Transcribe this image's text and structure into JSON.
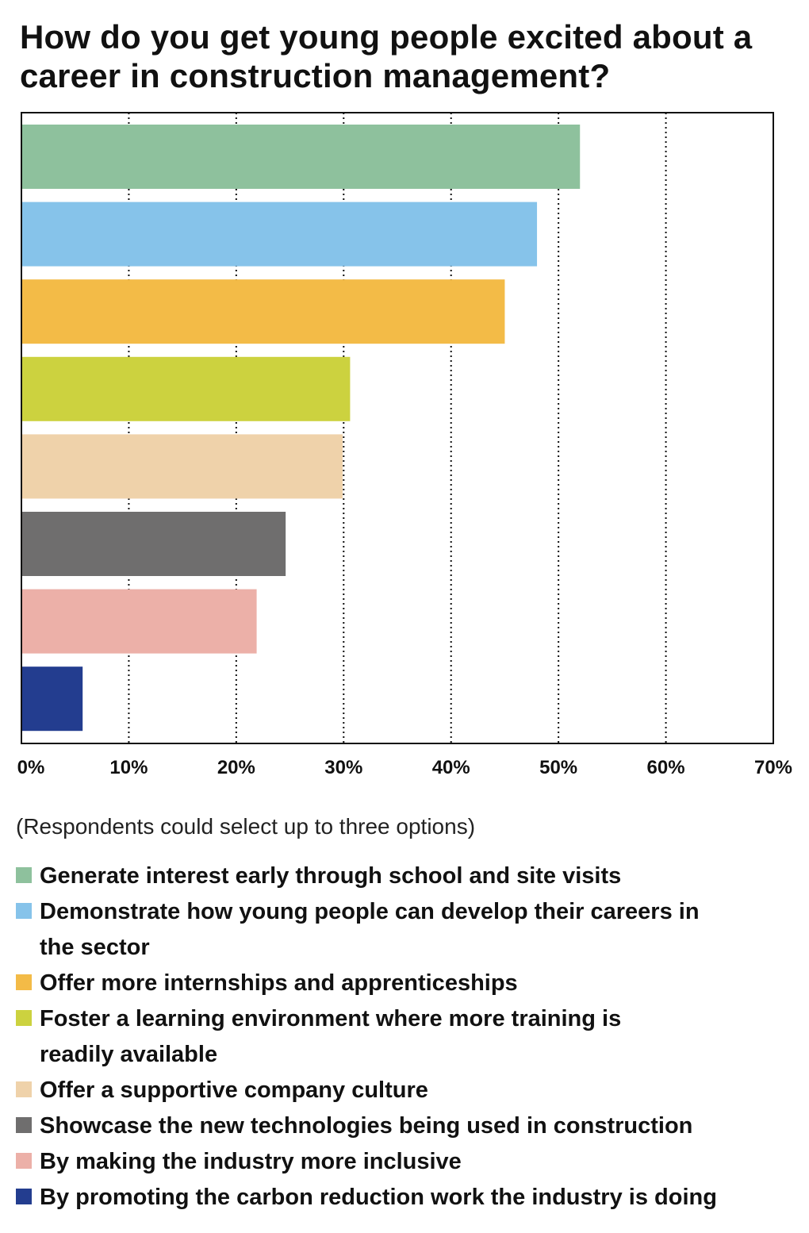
{
  "chart_data": {
    "type": "bar",
    "orientation": "horizontal",
    "title": "How do you get young people excited about a career in construction management?",
    "note": "(Respondents could select up to three options)",
    "xlim": [
      0,
      70
    ],
    "xticks": [
      "0%",
      "10%",
      "20%",
      "30%",
      "40%",
      "50%",
      "60%",
      "70%"
    ],
    "grid": "vertical dotted",
    "legend_position": "bottom",
    "categories": [
      "Generate interest early through school and site visits",
      "Demonstrate how young people can develop their careers in the sector",
      "Offer more internships and apprenticeships",
      "Foster a learning environment where more training is readily available",
      "Offer a supportive company culture",
      "Showcase the new technologies being used in construction",
      "By making the industry more inclusive",
      "By promoting the carbon reduction work the industry is doing"
    ],
    "values": [
      52,
      48,
      45,
      30.6,
      29.9,
      24.6,
      21.9,
      5.7
    ],
    "colors": [
      "#8ec19d",
      "#86c3ea",
      "#f3bb47",
      "#ccd23f",
      "#efd2aa",
      "#6f6e6e",
      "#ecb0a8",
      "#233d8f"
    ]
  }
}
